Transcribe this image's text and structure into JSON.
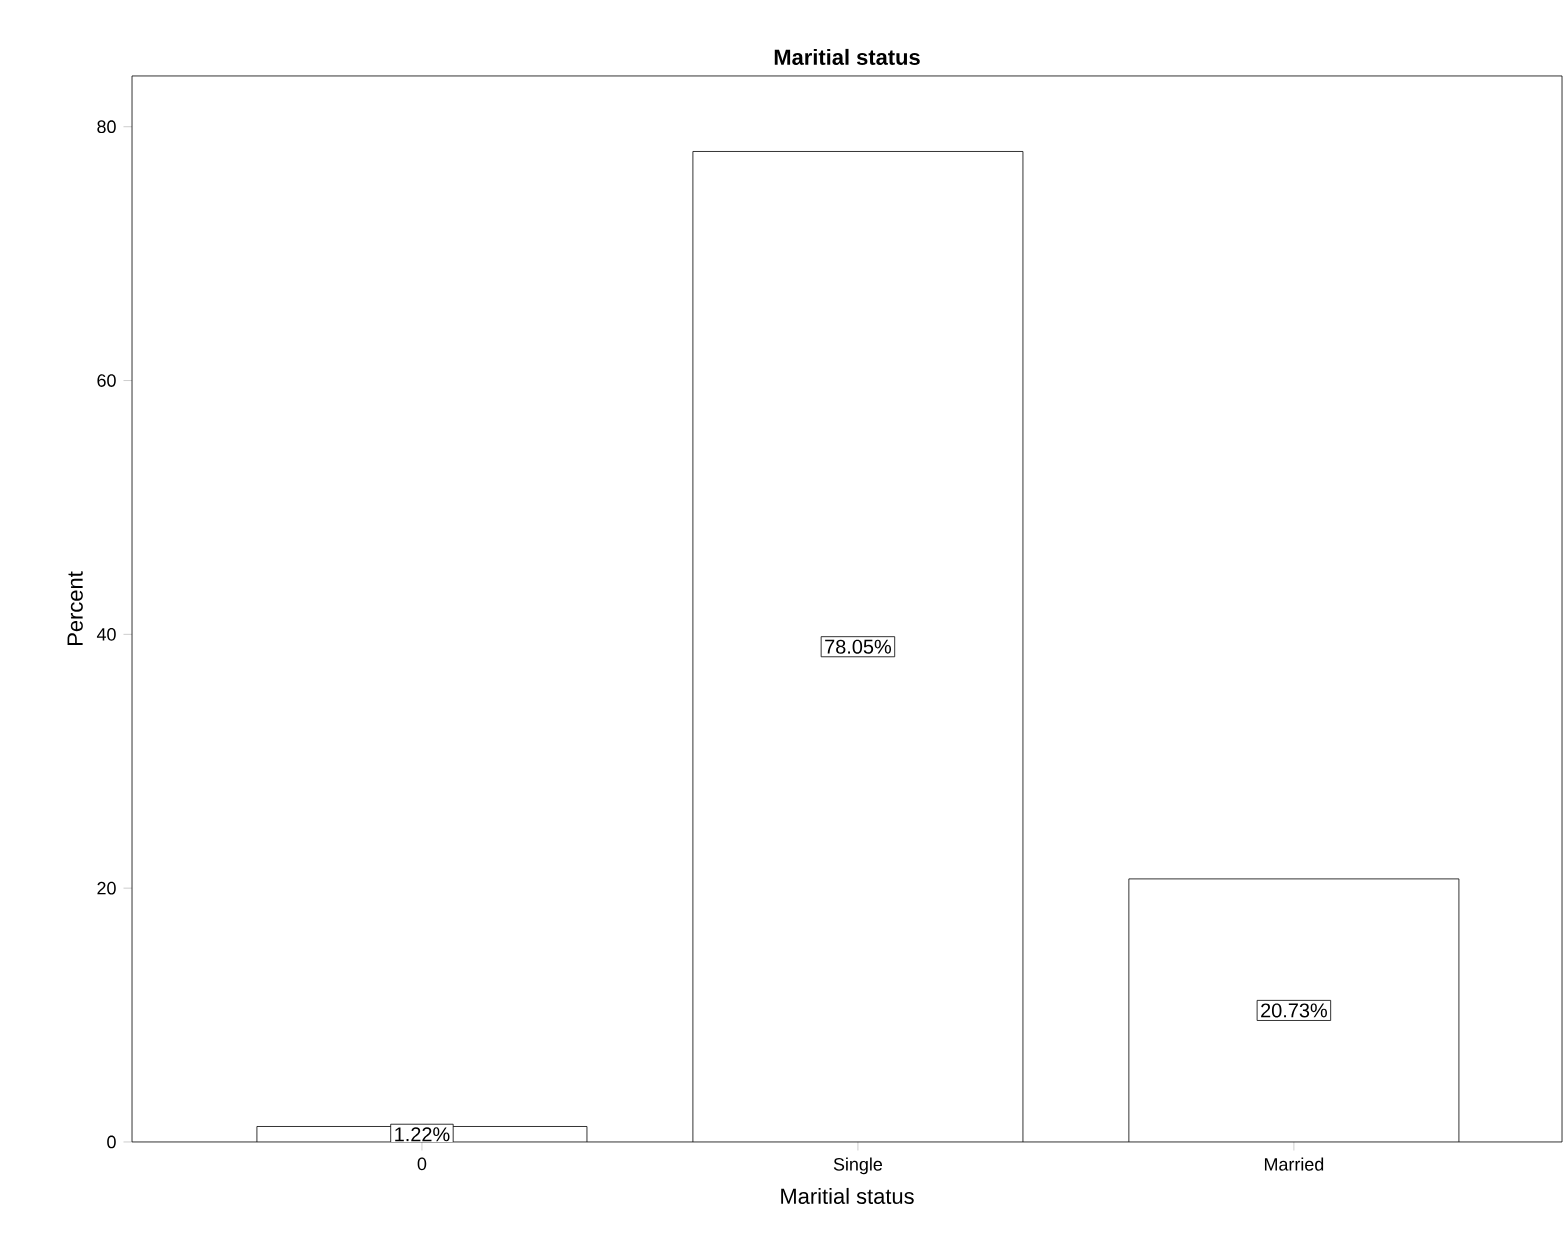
{
  "chart_data": {
    "type": "bar",
    "title": "Maritial status",
    "xlabel": "Maritial status",
    "ylabel": "Percent",
    "categories": [
      "0",
      "Single",
      "Married"
    ],
    "values": [
      1.22,
      78.05,
      20.73
    ],
    "value_labels": [
      "1.22%",
      "78.05%",
      "20.73%"
    ],
    "color": "#ffffff",
    "ylim": [
      0,
      84
    ],
    "yticks": [
      0,
      20,
      40,
      60,
      80
    ]
  }
}
